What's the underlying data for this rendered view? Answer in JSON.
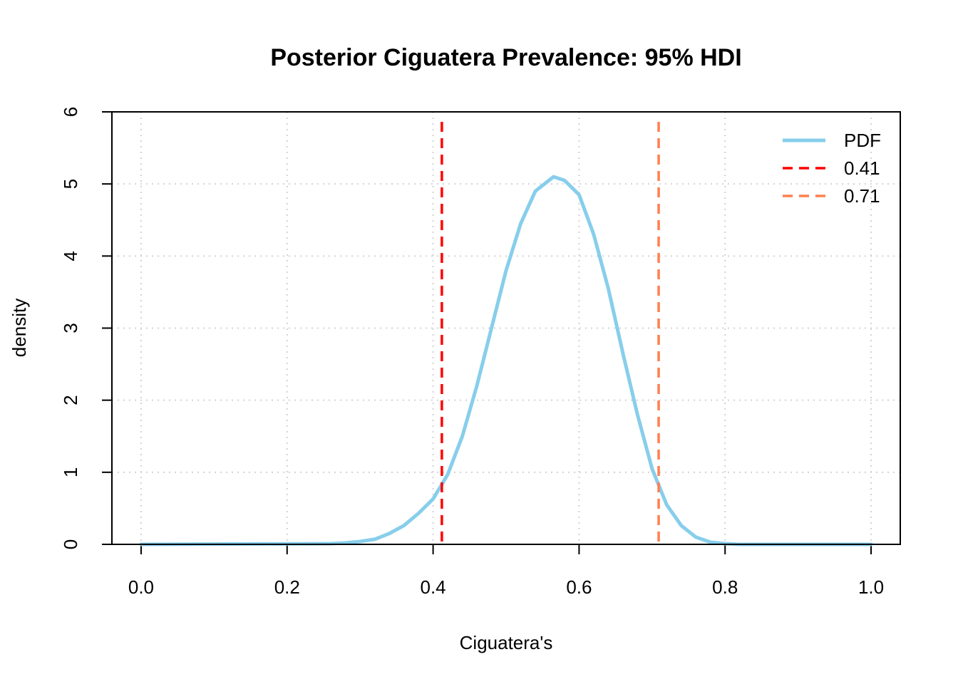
{
  "chart_data": {
    "type": "line",
    "title": "Posterior Ciguatera Prevalence: 95% HDI",
    "xlabel": "Ciguatera's",
    "ylabel": "density",
    "xlim": [
      -0.04,
      1.04
    ],
    "ylim": [
      0,
      6
    ],
    "x_ticks": [
      0.0,
      0.2,
      0.4,
      0.6,
      0.8,
      1.0
    ],
    "x_tick_labels": [
      "0.0",
      "0.2",
      "0.4",
      "0.6",
      "0.8",
      "1.0"
    ],
    "y_ticks": [
      0,
      1,
      2,
      3,
      4,
      5,
      6
    ],
    "y_tick_labels": [
      "0",
      "1",
      "2",
      "3",
      "4",
      "5",
      "6"
    ],
    "grid": true,
    "legend_position": "top-right",
    "series": [
      {
        "name": "PDF",
        "color": "#87ceeb",
        "style": "solid",
        "x": [
          0.0,
          0.26,
          0.28,
          0.3,
          0.32,
          0.34,
          0.36,
          0.38,
          0.4,
          0.42,
          0.44,
          0.46,
          0.48,
          0.5,
          0.52,
          0.54,
          0.565,
          0.58,
          0.6,
          0.62,
          0.64,
          0.66,
          0.68,
          0.7,
          0.72,
          0.74,
          0.76,
          0.78,
          0.8,
          0.82,
          1.0
        ],
        "y": [
          0.0,
          0.01,
          0.02,
          0.04,
          0.07,
          0.15,
          0.26,
          0.43,
          0.63,
          0.97,
          1.5,
          2.2,
          3.0,
          3.8,
          4.45,
          4.9,
          5.1,
          5.05,
          4.85,
          4.3,
          3.55,
          2.65,
          1.8,
          1.05,
          0.55,
          0.26,
          0.1,
          0.03,
          0.01,
          0.0,
          0.0
        ]
      },
      {
        "name": "0.41",
        "color": "#ff0000",
        "style": "dashed",
        "vline": 0.412
      },
      {
        "name": "0.71",
        "color": "#ff7f50",
        "style": "dashed",
        "vline": 0.709
      }
    ]
  }
}
